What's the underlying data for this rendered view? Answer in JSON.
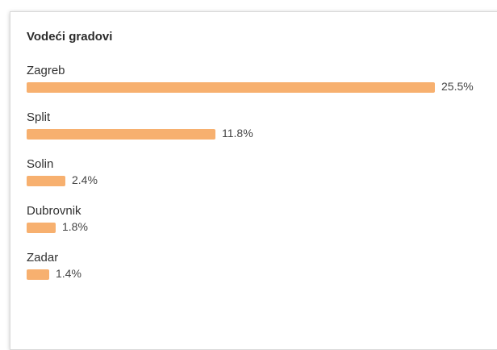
{
  "card": {
    "title": "Vodeći gradovi"
  },
  "colors": {
    "bar": "#f7b06f"
  },
  "cities": [
    {
      "name": "Zagreb",
      "share": 25.5,
      "label": "25.5%"
    },
    {
      "name": "Split",
      "share": 11.8,
      "label": "11.8%"
    },
    {
      "name": "Solin",
      "share": 2.4,
      "label": "2.4%"
    },
    {
      "name": "Dubrovnik",
      "share": 1.8,
      "label": "1.8%"
    },
    {
      "name": "Zadar",
      "share": 1.4,
      "label": "1.4%"
    }
  ]
}
